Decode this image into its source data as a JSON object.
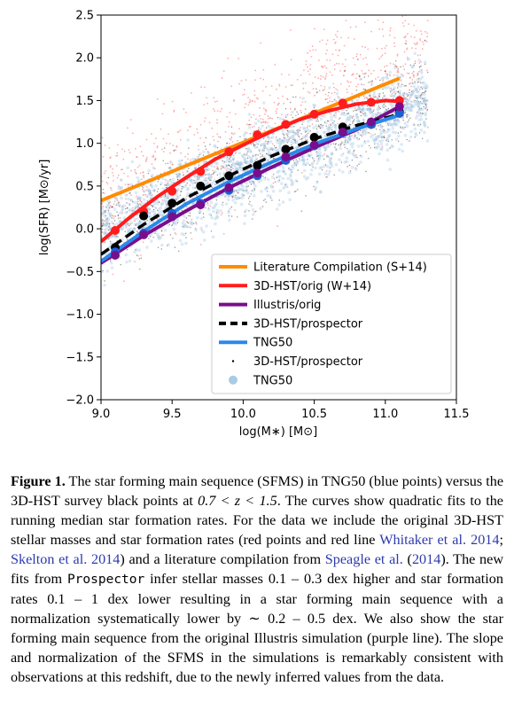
{
  "chart_data": {
    "type": "scatter",
    "xlabel": "log(M∗) [M⊙]",
    "ylabel": "log(SFR) [M⊙/yr]",
    "xlim": [
      9.0,
      11.5
    ],
    "ylim": [
      -2.0,
      2.5
    ],
    "xticks": [
      "9.0",
      "9.5",
      "10.0",
      "10.5",
      "11.0",
      "11.5"
    ],
    "yticks": [
      "−2.0",
      "−1.5",
      "−1.0",
      "−0.5",
      "0.0",
      "0.5",
      "1.0",
      "1.5",
      "2.0",
      "2.5"
    ],
    "grid": false,
    "legend_position": "lower-right",
    "series": [
      {
        "name": "Literature Compilation (S+14)",
        "kind": "line",
        "color": "#ff8c00",
        "x": [
          9.0,
          11.1
        ],
        "y": [
          0.33,
          1.76
        ]
      },
      {
        "name": "3D-HST/orig (W+14)",
        "kind": "line",
        "color": "#ff1c1c",
        "x": [
          9.0,
          9.2,
          9.4,
          9.6,
          9.8,
          10.0,
          10.2,
          10.4,
          10.6,
          10.8,
          11.0,
          11.1
        ],
        "y": [
          -0.15,
          0.13,
          0.38,
          0.6,
          0.81,
          0.98,
          1.14,
          1.28,
          1.38,
          1.46,
          1.5,
          1.49
        ]
      },
      {
        "name": "Illustris/orig",
        "kind": "line",
        "color": "#7a0d8c",
        "x": [
          9.0,
          9.3,
          9.6,
          9.9,
          10.2,
          10.5,
          10.8,
          11.1
        ],
        "y": [
          -0.4,
          -0.08,
          0.21,
          0.48,
          0.72,
          0.95,
          1.16,
          1.43
        ]
      },
      {
        "name": "3D-HST/prospector",
        "kind": "dashed",
        "color": "#000000",
        "x": [
          9.0,
          9.3,
          9.6,
          9.9,
          10.2,
          10.5,
          10.8,
          11.1
        ],
        "y": [
          -0.3,
          0.05,
          0.36,
          0.62,
          0.85,
          1.05,
          1.21,
          1.34
        ]
      },
      {
        "name": "TNG50",
        "kind": "line",
        "color": "#2b88e8",
        "x": [
          9.0,
          9.3,
          9.6,
          9.9,
          10.2,
          10.5,
          10.8,
          11.1
        ],
        "y": [
          -0.38,
          -0.03,
          0.29,
          0.55,
          0.78,
          0.99,
          1.17,
          1.33
        ]
      },
      {
        "name": "3D-HST/orig medians",
        "kind": "points",
        "color": "#ff1c1c",
        "x": [
          9.1,
          9.3,
          9.5,
          9.7,
          9.9,
          10.1,
          10.3,
          10.5,
          10.7,
          10.9,
          11.1
        ],
        "y": [
          -0.02,
          0.2,
          0.44,
          0.67,
          0.9,
          1.1,
          1.22,
          1.34,
          1.47,
          1.48,
          1.5
        ]
      },
      {
        "name": "3D-HST/prospector medians",
        "kind": "points",
        "color": "#000000",
        "x": [
          9.1,
          9.3,
          9.5,
          9.7,
          9.9,
          10.1,
          10.3,
          10.5,
          10.7,
          10.9,
          11.1
        ],
        "y": [
          -0.22,
          0.15,
          0.3,
          0.5,
          0.62,
          0.74,
          0.93,
          1.07,
          1.19,
          1.22,
          1.37
        ]
      },
      {
        "name": "TNG50 medians",
        "kind": "points",
        "color": "#1a5fd6",
        "x": [
          9.1,
          9.3,
          9.5,
          9.7,
          9.9,
          10.1,
          10.3,
          10.5,
          10.7,
          10.9,
          11.1
        ],
        "y": [
          -0.27,
          -0.05,
          0.18,
          0.3,
          0.45,
          0.62,
          0.8,
          0.97,
          1.12,
          1.22,
          1.35
        ]
      },
      {
        "name": "Illustris/orig medians",
        "kind": "points",
        "color": "#7a0d8c",
        "x": [
          9.1,
          9.3,
          9.5,
          9.7,
          9.9,
          10.1,
          10.3,
          10.5,
          10.7,
          10.9,
          11.1
        ],
        "y": [
          -0.31,
          -0.07,
          0.14,
          0.28,
          0.48,
          0.65,
          0.84,
          0.98,
          1.13,
          1.25,
          1.43
        ]
      }
    ],
    "legend": [
      {
        "label": "Literature Compilation (S+14)",
        "style": "line",
        "color": "#ff8c00"
      },
      {
        "label": "3D-HST/orig (W+14)",
        "style": "line",
        "color": "#ff1c1c"
      },
      {
        "label": "Illustris/orig",
        "style": "line",
        "color": "#7a0d8c"
      },
      {
        "label": "3D-HST/prospector",
        "style": "dashed",
        "color": "#000000"
      },
      {
        "label": "TNG50",
        "style": "line",
        "color": "#2b88e8"
      },
      {
        "label": "3D-HST/prospector",
        "style": "dot",
        "color": "#000000"
      },
      {
        "label": "TNG50",
        "style": "disc",
        "color": "#a9cbe4"
      }
    ],
    "scatter_clouds": [
      {
        "name": "3D-HST/orig",
        "color": "#ff6b6b",
        "center_slope": 0.78,
        "center_intercept": 0.72,
        "spread": 0.45
      },
      {
        "name": "3D-HST/prospector",
        "color": "#2b2b2b",
        "center_slope": 0.7,
        "center_intercept": 0.36,
        "spread": 0.35
      },
      {
        "name": "TNG50",
        "color": "#9ec4e2",
        "center_slope": 0.68,
        "center_intercept": 0.32,
        "spread": 0.32
      }
    ]
  },
  "caption": {
    "label": "Figure 1.",
    "t1": " The star forming main sequence (SFMS) in TNG50 (blue points) versus the 3D-HST survey black points at ",
    "range": "0.7 < z < 1.5",
    "t2": ". The curves show quadratic fits to the running median star formation rates. For the data we include the original 3D-HST stellar masses and star formation rates (red points and red line ",
    "ref1": "Whitaker et al. 2014",
    "t3": "; ",
    "ref2": "Skelton et al. 2014",
    "t4": ") and a literature compilation from ",
    "ref3": "Speagle et al.",
    "t5": " (",
    "ref4": "2014",
    "t6": "). The new fits from ",
    "code": "Prospector",
    "t7": " infer stellar masses 0.1 – 0.3 dex higher and star formation rates 0.1 – 1 dex lower resulting in a star forming main sequence with a normalization systematically lower by ∼ 0.2 – 0.5 dex. We also show the star forming main sequence from the original Illustris simulation (purple line). The slope and normalization of the SFMS in the simulations is remarkably consistent with observations at this redshift, due to the newly inferred values from the data."
  }
}
